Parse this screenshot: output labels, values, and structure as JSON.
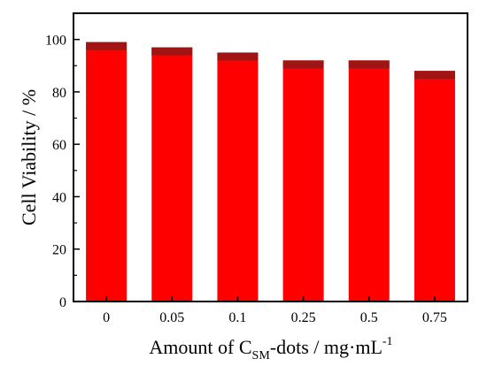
{
  "chart_data": {
    "type": "bar",
    "categories": [
      "0",
      "0.05",
      "0.1",
      "0.25",
      "0.5",
      "0.75"
    ],
    "values": [
      99,
      97,
      95,
      92,
      92,
      88
    ],
    "ylim": [
      0,
      110
    ],
    "yticks": [
      "0",
      "20",
      "40",
      "60",
      "80",
      "100"
    ],
    "ylabel": "Cell Viability / %",
    "xlabel": {
      "prefix": "Amount of C",
      "subscript": "SM",
      "middle": "-dots / mg·mL",
      "superscript": "-1"
    },
    "grid": false,
    "legend": "none",
    "colors": {
      "bar": "#ff0000",
      "bar_cap": "#a01414"
    }
  }
}
